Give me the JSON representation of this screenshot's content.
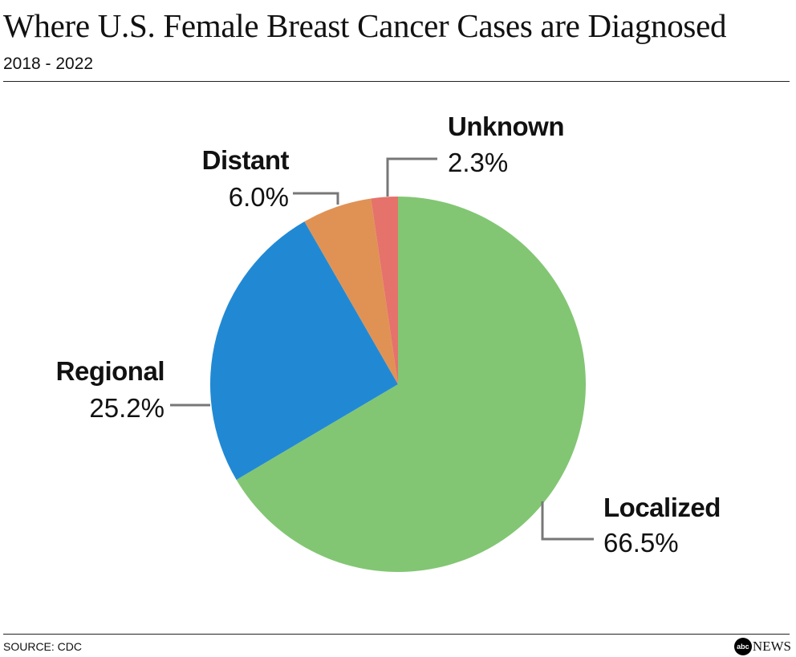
{
  "chart_data": {
    "type": "pie",
    "title": "Where U.S. Female Breast Cancer Cases are Diagnosed",
    "subtitle": "2018 - 2022",
    "source": "SOURCE: CDC",
    "logo": "abc NEWS",
    "slices": [
      {
        "label": "Localized",
        "value": 66.5,
        "value_label": "66.5%",
        "color": "#82c673"
      },
      {
        "label": "Regional",
        "value": 25.2,
        "value_label": "25.2%",
        "color": "#2189d4"
      },
      {
        "label": "Distant",
        "value": 6.0,
        "value_label": "6.0%",
        "color": "#e09254"
      },
      {
        "label": "Unknown",
        "value": 2.3,
        "value_label": "2.3%",
        "color": "#e5726b"
      }
    ],
    "start": "12 o'clock, clockwise",
    "leader_color": "#777777"
  }
}
